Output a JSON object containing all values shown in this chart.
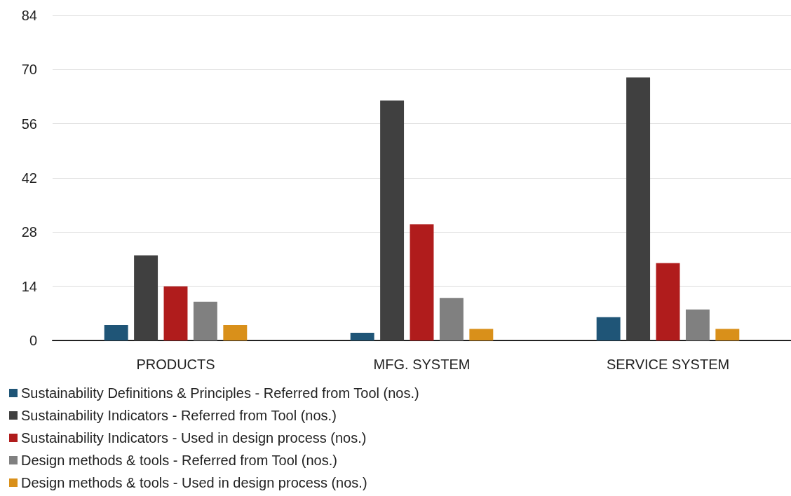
{
  "chart_data": {
    "type": "bar",
    "categories": [
      "PRODUCTS",
      "MFG. SYSTEM",
      "SERVICE SYSTEM"
    ],
    "series": [
      {
        "name": "Sustainability Definitions & Principles - Referred from Tool (nos.)",
        "color": "#1f5577",
        "values": [
          4,
          2,
          6
        ]
      },
      {
        "name": "Sustainability Indicators - Referred from Tool (nos.)",
        "color": "#404040",
        "values": [
          22,
          62,
          68
        ]
      },
      {
        "name": "Sustainability Indicators - Used in design process (nos.)",
        "color": "#b01c1c",
        "values": [
          14,
          30,
          20
        ]
      },
      {
        "name": "Design methods & tools - Referred from Tool (nos.)",
        "color": "#808080",
        "values": [
          10,
          11,
          8
        ]
      },
      {
        "name": "Design methods & tools - Used in design process (nos.)",
        "color": "#d9901a",
        "values": [
          4,
          3,
          3
        ]
      }
    ],
    "ylim": [
      0,
      84
    ],
    "yticks": [
      0,
      14,
      28,
      42,
      56,
      70,
      84
    ],
    "grid": "y",
    "legend": "bottom"
  }
}
